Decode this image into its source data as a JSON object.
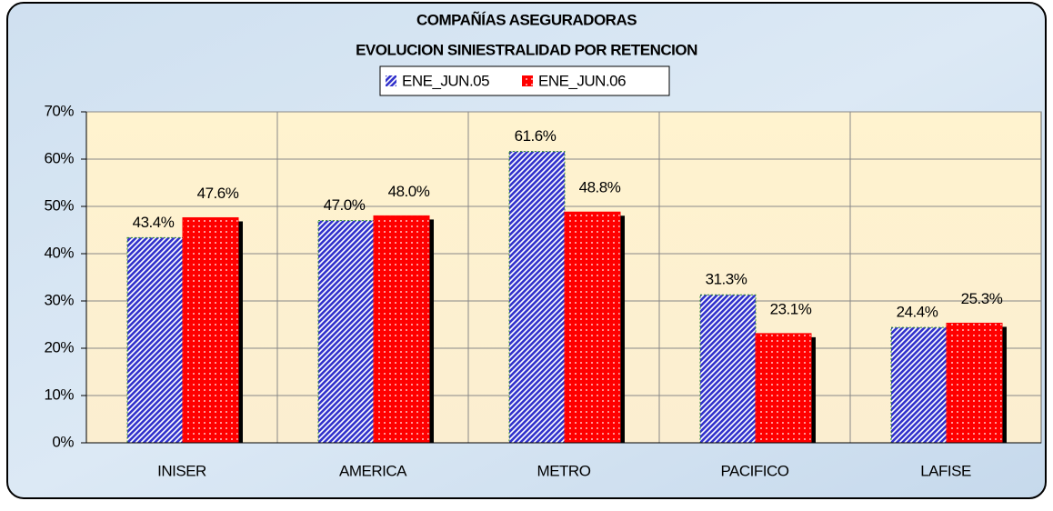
{
  "chart_data": {
    "type": "bar",
    "title": "COMPAÑÍAS ASEGURADORAS",
    "subtitle": "EVOLUCION SINIESTRALIDAD POR RETENCION",
    "categories": [
      "INISER",
      "AMERICA",
      "METRO",
      "PACIFICO",
      "LAFISE"
    ],
    "series": [
      {
        "name": "ENE_JUN.05",
        "color": "#3333cc",
        "values": [
          43.4,
          47.0,
          61.6,
          31.3,
          24.4
        ],
        "value_labels": [
          "43.4%",
          "47.0%",
          "61.6%",
          "31.3%",
          "24.4%"
        ]
      },
      {
        "name": "ENE_JUN.06",
        "color": "#ff0000",
        "values": [
          47.6,
          48.0,
          48.8,
          23.1,
          25.3
        ],
        "value_labels": [
          "47.6%",
          "48.0%",
          "48.8%",
          "23.1%",
          "25.3%"
        ]
      }
    ],
    "ylim": [
      0,
      70
    ],
    "yticks": [
      {
        "value": 0,
        "label": "0%"
      },
      {
        "value": 10,
        "label": "10%"
      },
      {
        "value": 20,
        "label": "20%"
      },
      {
        "value": 30,
        "label": "30%"
      },
      {
        "value": 40,
        "label": "40%"
      },
      {
        "value": 50,
        "label": "50%"
      },
      {
        "value": 60,
        "label": "60%"
      },
      {
        "value": 70,
        "label": "70%"
      }
    ],
    "grid": true
  }
}
